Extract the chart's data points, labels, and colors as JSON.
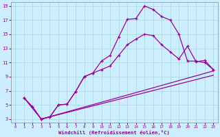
{
  "xlabel": "Windchill (Refroidissement éolien,°C)",
  "xlim": [
    -0.5,
    23.5
  ],
  "ylim": [
    2.5,
    19.5
  ],
  "yticks": [
    3,
    5,
    7,
    9,
    11,
    13,
    15,
    17,
    19
  ],
  "xticks": [
    0,
    1,
    2,
    3,
    4,
    5,
    6,
    7,
    8,
    9,
    10,
    11,
    12,
    13,
    14,
    15,
    16,
    17,
    18,
    19,
    20,
    21,
    22,
    23
  ],
  "line_color": "#990099",
  "bg_color": "#cceeff",
  "grid_color": "#aadddd",
  "line1_x": [
    1,
    2,
    3,
    4,
    5,
    6,
    7,
    8,
    9,
    10,
    11,
    12,
    13,
    14,
    15,
    16,
    17,
    18,
    19,
    20,
    21,
    22,
    23
  ],
  "line1_y": [
    6.0,
    4.7,
    3.0,
    3.3,
    5.0,
    5.1,
    6.9,
    9.0,
    9.5,
    11.2,
    12.0,
    14.6,
    17.1,
    17.2,
    19.0,
    18.5,
    17.5,
    17.0,
    15.0,
    11.2,
    11.2,
    11.0,
    10.0
  ],
  "line2_x": [
    1,
    2,
    3,
    4,
    5,
    6,
    7,
    8,
    9,
    10,
    11,
    12,
    13,
    14,
    15,
    16,
    17,
    18,
    19,
    20,
    21,
    22,
    23
  ],
  "line2_y": [
    6.0,
    4.7,
    3.0,
    3.3,
    5.0,
    5.1,
    6.9,
    9.0,
    9.5,
    10.0,
    10.5,
    12.0,
    13.5,
    14.3,
    15.0,
    14.8,
    13.5,
    12.5,
    11.5,
    13.3,
    11.1,
    11.3,
    10.0
  ],
  "line3_x": [
    1,
    3,
    23
  ],
  "line3_y": [
    6.0,
    3.0,
    9.8
  ],
  "line4_x": [
    3,
    23
  ],
  "line4_y": [
    3.0,
    9.2
  ]
}
